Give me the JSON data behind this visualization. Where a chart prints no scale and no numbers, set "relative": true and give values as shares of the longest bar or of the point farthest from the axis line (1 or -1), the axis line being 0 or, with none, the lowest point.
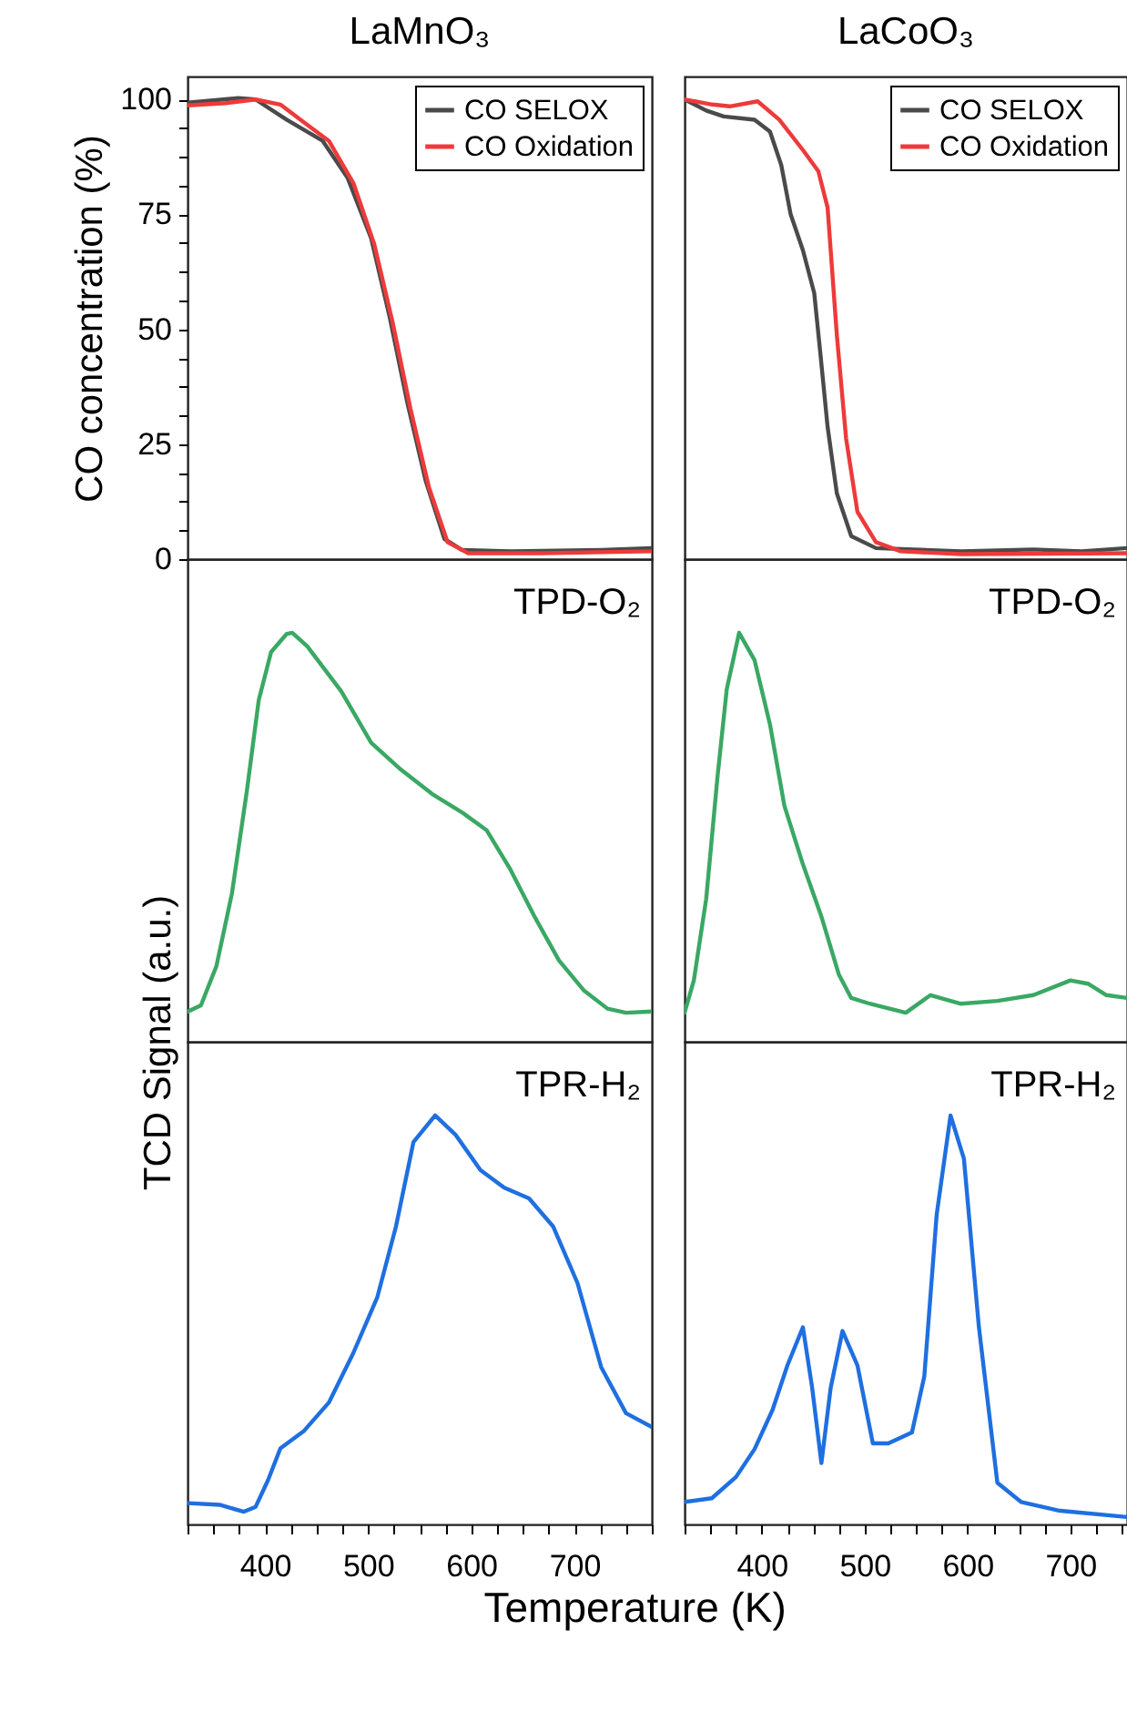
{
  "chart_data": [
    {
      "type": "line",
      "title": "LaMnO₃",
      "ylabel": "CO concentration (%)",
      "xlim": [
        325,
        775
      ],
      "ylim": [
        0,
        105
      ],
      "yticks": [
        0,
        {
          "value": 6.25,
          "label": null
        },
        {
          "value": 12.5,
          "label": null
        },
        {
          "value": 18.75,
          "label": null
        },
        25,
        {
          "value": 31.25,
          "label": null
        },
        {
          "value": 37.5,
          "label": null
        },
        {
          "value": 43.75,
          "label": null
        },
        50,
        {
          "value": 56.25,
          "label": null
        },
        {
          "value": 62.5,
          "label": null
        },
        {
          "value": 68.75,
          "label": null
        },
        75,
        {
          "value": 81.25,
          "label": null
        },
        {
          "value": 87.5,
          "label": null
        },
        {
          "value": 93.75,
          "label": null
        },
        100
      ],
      "tick_labels": "y",
      "legend": "top right",
      "series": [
        {
          "name": "CO SELOX",
          "color": "#4a4a4a",
          "x": [
            325,
            374,
            391,
            421,
            456,
            480,
            503,
            521,
            538,
            556,
            574,
            591,
            638,
            726,
            775
          ],
          "values": [
            99.3,
            100.3,
            100,
            95.6,
            91,
            83,
            69.8,
            52.6,
            34.1,
            16.9,
            4.4,
            2,
            1.7,
            2,
            2.4
          ]
        },
        {
          "name": "CO Oxidation",
          "color": "#ee3a3a",
          "x": [
            325,
            362,
            391,
            415,
            438,
            462,
            486,
            506,
            524,
            541,
            559,
            577,
            597,
            668,
            775
          ],
          "values": [
            98.7,
            99.2,
            100,
            98.9,
            95,
            91,
            81.7,
            68.5,
            51.3,
            32.8,
            15.6,
            3.7,
            1.3,
            1.3,
            1.7
          ]
        }
      ]
    },
    {
      "type": "line",
      "title": "LaCoO₃",
      "xlim": [
        325,
        755
      ],
      "ylim": [
        0,
        105
      ],
      "tick_labels": false,
      "legend": "top right",
      "series": [
        {
          "name": "CO SELOX",
          "color": "#4a4a4a",
          "x": [
            325,
            346,
            363,
            393,
            408,
            419,
            428,
            440,
            451,
            457,
            464,
            473,
            487,
            511,
            594,
            664,
            711,
            755
          ],
          "values": [
            100,
            97.6,
            96.3,
            95.6,
            93,
            85.7,
            75.1,
            67.2,
            57.9,
            44.7,
            28.8,
            14.3,
            5,
            2.4,
            1.7,
            2.1,
            1.7,
            2.4
          ]
        },
        {
          "name": "CO Oxidation",
          "color": "#ee3a3a",
          "x": [
            325,
            352,
            369,
            396,
            417,
            440,
            455,
            464,
            473,
            482,
            493,
            511,
            535,
            594,
            755
          ],
          "values": [
            100,
            98.9,
            98.5,
            99.6,
            95.6,
            89,
            84.4,
            76.5,
            48.7,
            26.2,
            10.3,
            3.7,
            1.7,
            1.1,
            1.3
          ]
        }
      ]
    },
    {
      "type": "line",
      "ylabel": "TCD Signal (a.u.)",
      "relative": true,
      "xlim": [
        325,
        775
      ],
      "tick_labels": false,
      "annotations": [
        "TPD-O₂"
      ],
      "series": [
        {
          "color": "#3aa864",
          "x": [
            325.5,
            338,
            353,
            368,
            382.5,
            394,
            406,
            421,
            426.5,
            441,
            474,
            503,
            532,
            562,
            591,
            615,
            638,
            662,
            685,
            709,
            732,
            750,
            775
          ],
          "values": [
            0.074,
            0.089,
            0.185,
            0.362,
            0.613,
            0.835,
            0.953,
            0.997,
            1,
            0.967,
            0.857,
            0.731,
            0.665,
            0.606,
            0.561,
            0.517,
            0.421,
            0.303,
            0.199,
            0.126,
            0.081,
            0.071,
            0.074
          ]
        }
      ]
    },
    {
      "type": "line",
      "relative": true,
      "xlim": [
        325,
        755
      ],
      "tick_labels": false,
      "annotations": [
        "TPD-O₂"
      ],
      "series": [
        {
          "color": "#3aa864",
          "x": [
            325,
            334,
            346,
            357,
            366,
            378,
            393,
            408,
            422,
            440,
            458,
            475,
            487,
            505,
            540,
            564,
            593,
            629,
            664,
            700,
            717,
            735,
            755
          ],
          "values": [
            0.071,
            0.15,
            0.349,
            0.648,
            0.862,
            1,
            0.933,
            0.776,
            0.577,
            0.434,
            0.306,
            0.164,
            0.107,
            0.093,
            0.071,
            0.114,
            0.093,
            0.1,
            0.114,
            0.15,
            0.142,
            0.114,
            0.107
          ]
        }
      ]
    },
    {
      "type": "line",
      "relative": true,
      "xlabel": "Temperature (K)",
      "xlim": [
        325,
        775
      ],
      "xticks": [
        {
          "value": 325,
          "label": null
        },
        {
          "value": 350,
          "label": null
        },
        {
          "value": 375,
          "label": null
        },
        400,
        {
          "value": 425,
          "label": null
        },
        {
          "value": 450,
          "label": null
        },
        {
          "value": 475,
          "label": null
        },
        500,
        {
          "value": 525,
          "label": null
        },
        {
          "value": 550,
          "label": null
        },
        {
          "value": 575,
          "label": null
        },
        600,
        {
          "value": 625,
          "label": null
        },
        {
          "value": 650,
          "label": null
        },
        {
          "value": 675,
          "label": null
        },
        700,
        {
          "value": 725,
          "label": null
        },
        {
          "value": 750,
          "label": null
        },
        {
          "value": 775,
          "label": null
        }
      ],
      "tick_labels": "x",
      "annotations": [
        "TPR-H₂"
      ],
      "series": [
        {
          "color": "#1f6fe0",
          "x": [
            325.5,
            356,
            379.6,
            391,
            403,
            415,
            438,
            462,
            485.5,
            509,
            527,
            544,
            565,
            585,
            609,
            632,
            656,
            679.5,
            703,
            726,
            750,
            775
          ],
          "values": [
            0.052,
            0.048,
            0.031,
            0.043,
            0.108,
            0.186,
            0.229,
            0.298,
            0.418,
            0.556,
            0.728,
            0.935,
            1,
            0.952,
            0.866,
            0.823,
            0.797,
            0.728,
            0.59,
            0.384,
            0.272,
            0.238
          ]
        }
      ]
    },
    {
      "type": "line",
      "relative": true,
      "xlim": [
        325,
        755
      ],
      "xticks": [
        {
          "value": 325,
          "label": null
        },
        {
          "value": 350,
          "label": null
        },
        {
          "value": 375,
          "label": null
        },
        400,
        {
          "value": 425,
          "label": null
        },
        {
          "value": 450,
          "label": null
        },
        {
          "value": 475,
          "label": null
        },
        500,
        {
          "value": 525,
          "label": null
        },
        {
          "value": 550,
          "label": null
        },
        {
          "value": 575,
          "label": null
        },
        600,
        {
          "value": 625,
          "label": null
        },
        {
          "value": 650,
          "label": null
        },
        {
          "value": 675,
          "label": null
        },
        700,
        {
          "value": 725,
          "label": null
        },
        {
          "value": 750,
          "label": null
        }
      ],
      "tick_labels": "x",
      "annotations": [
        "TPR-H₂"
      ],
      "series": [
        {
          "color": "#1f6fe0",
          "x": [
            325,
            351.5,
            375,
            393,
            410.5,
            425,
            440,
            449,
            458,
            467,
            478.5,
            493,
            508,
            523,
            546,
            558,
            570,
            583.5,
            596.5,
            611,
            629,
            652,
            688,
            755
          ],
          "values": [
            0.055,
            0.064,
            0.116,
            0.184,
            0.28,
            0.389,
            0.482,
            0.334,
            0.15,
            0.334,
            0.473,
            0.389,
            0.198,
            0.198,
            0.225,
            0.362,
            0.757,
            1,
            0.894,
            0.484,
            0.102,
            0.055,
            0.034,
            0.018
          ]
        }
      ]
    }
  ]
}
